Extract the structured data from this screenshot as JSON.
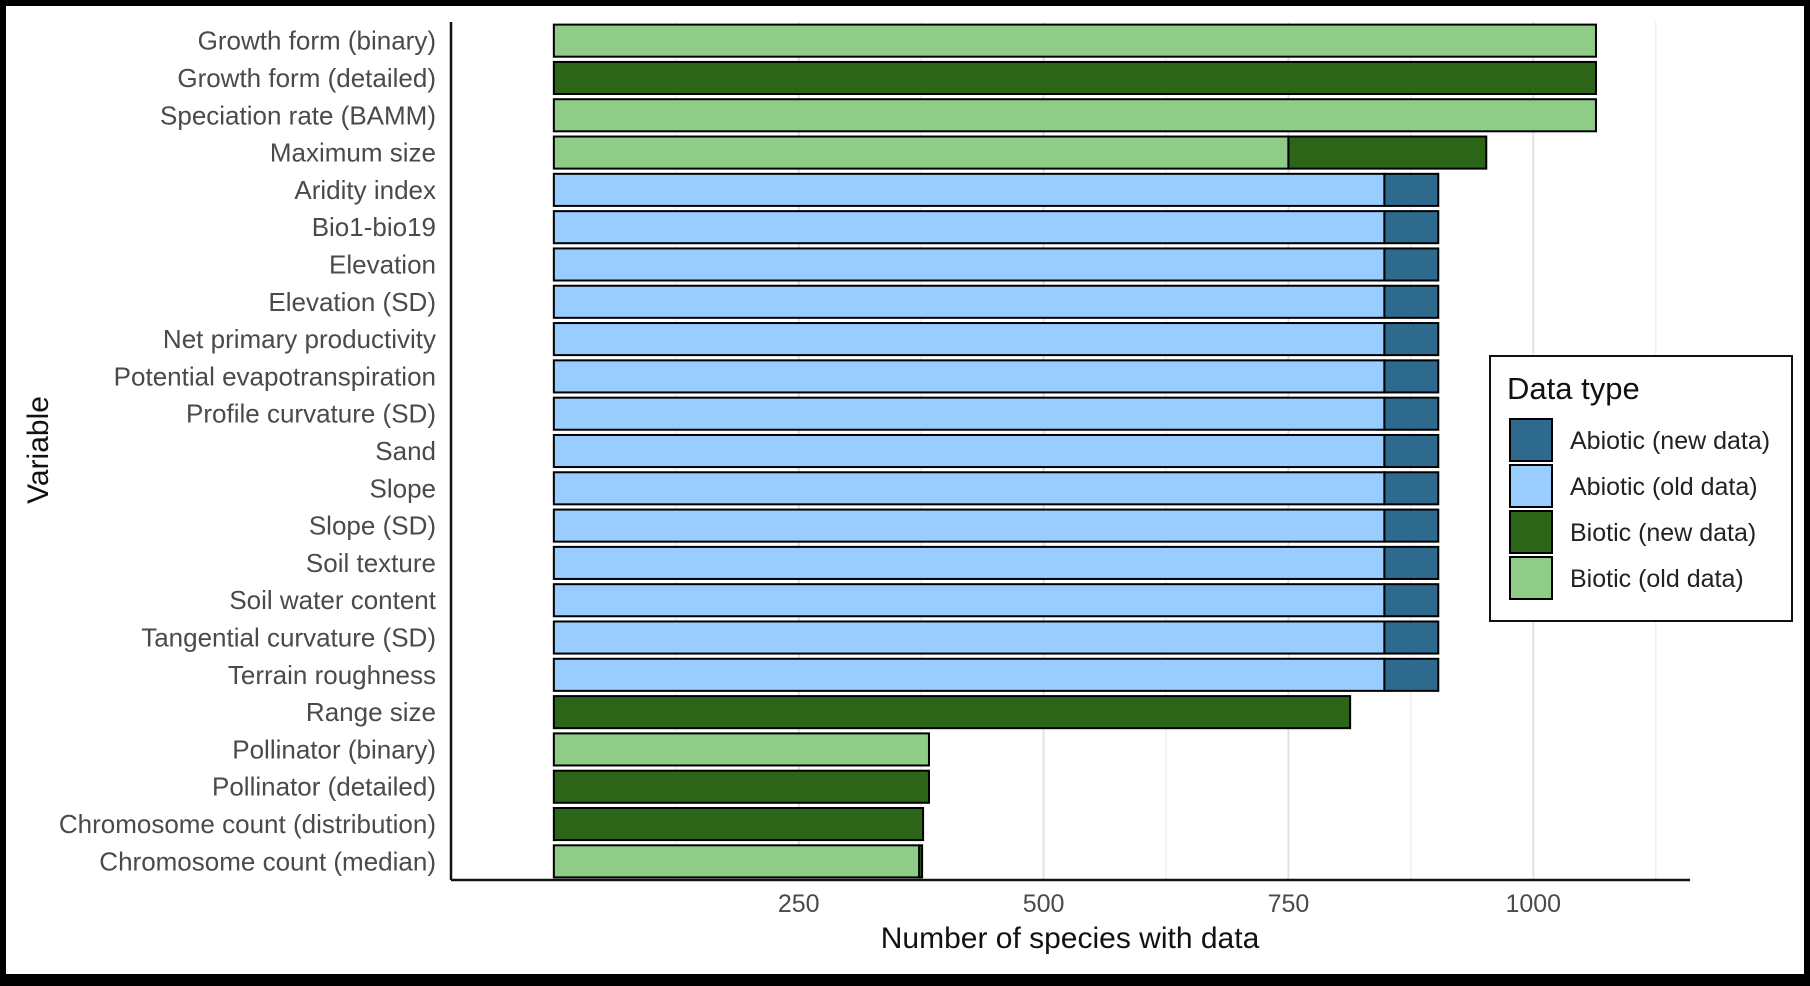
{
  "chart_data": {
    "type": "bar",
    "orientation": "horizontal",
    "stacked": true,
    "xlabel": "Number of species with data",
    "ylabel": "Variable",
    "xlim": [
      -105,
      1160
    ],
    "xticks": [
      250,
      500,
      750,
      1000
    ],
    "grid": true,
    "legend_title": "Data type",
    "legend_position": "right",
    "categories": [
      "Growth form (binary)",
      "Growth form (detailed)",
      "Speciation rate (BAMM)",
      "Maximum size",
      "Aridity index",
      "Bio1-bio19",
      "Elevation",
      "Elevation (SD)",
      "Net primary productivity",
      "Potential evapotranspiration",
      "Profile curvature (SD)",
      "Sand",
      "Slope",
      "Slope (SD)",
      "Soil texture",
      "Soil water content",
      "Tangential curvature (SD)",
      "Terrain roughness",
      "Range size",
      "Pollinator (binary)",
      "Pollinator (detailed)",
      "Chromosome count (distribution)",
      "Chromosome count (median)"
    ],
    "series": [
      {
        "name": "Abiotic (old data)",
        "color": "#99CCFF",
        "values": [
          0,
          0,
          0,
          0,
          848,
          848,
          848,
          848,
          848,
          848,
          848,
          848,
          848,
          848,
          848,
          848,
          848,
          848,
          0,
          0,
          0,
          0,
          0
        ]
      },
      {
        "name": "Abiotic (new data)",
        "color": "#2E6A8E",
        "values": [
          0,
          0,
          0,
          0,
          55,
          55,
          55,
          55,
          55,
          55,
          55,
          55,
          55,
          55,
          55,
          55,
          55,
          55,
          0,
          0,
          0,
          0,
          0
        ]
      },
      {
        "name": "Biotic (old data)",
        "color": "#8FCC88",
        "values": [
          1064,
          0,
          1064,
          750,
          0,
          0,
          0,
          0,
          0,
          0,
          0,
          0,
          0,
          0,
          0,
          0,
          0,
          0,
          0,
          383,
          0,
          0,
          373
        ]
      },
      {
        "name": "Biotic (new data)",
        "color": "#2C6418",
        "values": [
          0,
          1064,
          0,
          202,
          0,
          0,
          0,
          0,
          0,
          0,
          0,
          0,
          0,
          0,
          0,
          0,
          0,
          0,
          813,
          0,
          383,
          377,
          3
        ]
      }
    ],
    "legend_order": [
      "Abiotic (new data)",
      "Abiotic (old data)",
      "Biotic (new data)",
      "Biotic (old data)"
    ]
  }
}
